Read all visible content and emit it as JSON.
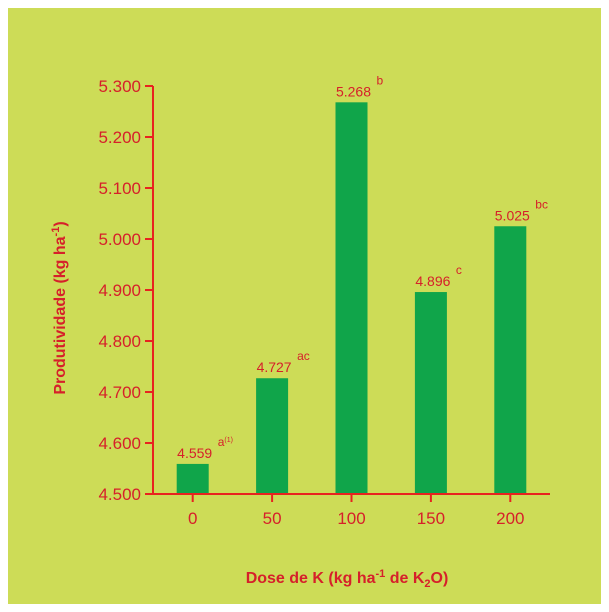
{
  "chart_data": {
    "type": "bar",
    "categories": [
      "0",
      "50",
      "100",
      "150",
      "200"
    ],
    "values": [
      4559,
      4727,
      5268,
      4896,
      5025
    ],
    "value_labels": [
      "4.559",
      "4.727",
      "5.268",
      "4.896",
      "5.025"
    ],
    "significance_letters": [
      "a",
      "ac",
      "b",
      "c",
      "bc"
    ],
    "first_letter_note": "(1)",
    "yticks": [
      "4.500",
      "4.600",
      "4.700",
      "4.800",
      "4.900",
      "5.000",
      "5.100",
      "5.200",
      "5.300"
    ],
    "ylim": [
      4500,
      5300
    ],
    "ylabel": {
      "text": "Produtividade (kg ha",
      "sup": "-1",
      "suffix": ")"
    },
    "xlabel": {
      "part1": "Dose de K (kg ha",
      "sup": "-1",
      "part2": " de K",
      "sub": "2",
      "part3": "O)"
    },
    "grid": false,
    "legend": "none",
    "colors": {
      "background": "#cddc57",
      "bar": "#10a54a",
      "text": "#d6202a",
      "axis": "#e8231f"
    }
  }
}
